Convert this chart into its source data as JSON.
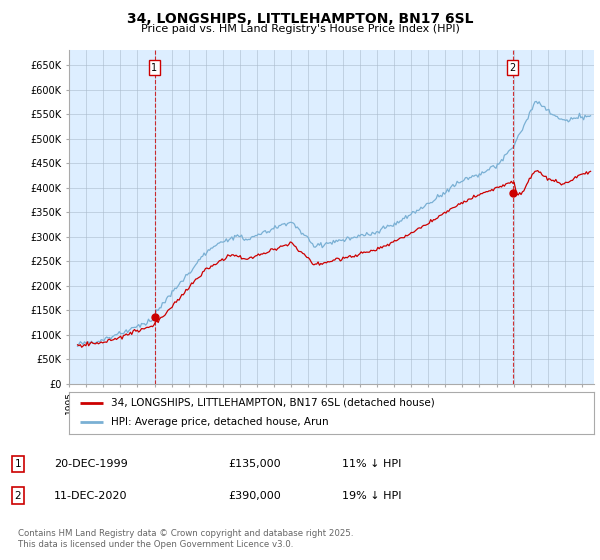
{
  "title": "34, LONGSHIPS, LITTLEHAMPTON, BN17 6SL",
  "subtitle": "Price paid vs. HM Land Registry's House Price Index (HPI)",
  "ylim": [
    0,
    680000
  ],
  "yticks": [
    0,
    50000,
    100000,
    150000,
    200000,
    250000,
    300000,
    350000,
    400000,
    450000,
    500000,
    550000,
    600000,
    650000
  ],
  "ytick_labels": [
    "£0",
    "£50K",
    "£100K",
    "£150K",
    "£200K",
    "£250K",
    "£300K",
    "£350K",
    "£400K",
    "£450K",
    "£500K",
    "£550K",
    "£600K",
    "£650K"
  ],
  "price_paid_color": "#cc0000",
  "hpi_color": "#7ab0d4",
  "chart_bg_color": "#ddeeff",
  "bg_color": "#ffffff",
  "grid_color": "#aabbcc",
  "legend_label_red": "34, LONGSHIPS, LITTLEHAMPTON, BN17 6SL (detached house)",
  "legend_label_blue": "HPI: Average price, detached house, Arun",
  "annotation1_label": "1",
  "annotation1_date": "20-DEC-1999",
  "annotation1_price": "£135,000",
  "annotation1_hpi": "11% ↓ HPI",
  "annotation2_label": "2",
  "annotation2_date": "11-DEC-2020",
  "annotation2_price": "£390,000",
  "annotation2_hpi": "19% ↓ HPI",
  "footer": "Contains HM Land Registry data © Crown copyright and database right 2025.\nThis data is licensed under the Open Government Licence v3.0.",
  "purchase1_x": 2000.0,
  "purchase1_y": 135000,
  "purchase2_x": 2020.95,
  "purchase2_y": 390000,
  "xlim_left": 1995.3,
  "xlim_right": 2025.7
}
